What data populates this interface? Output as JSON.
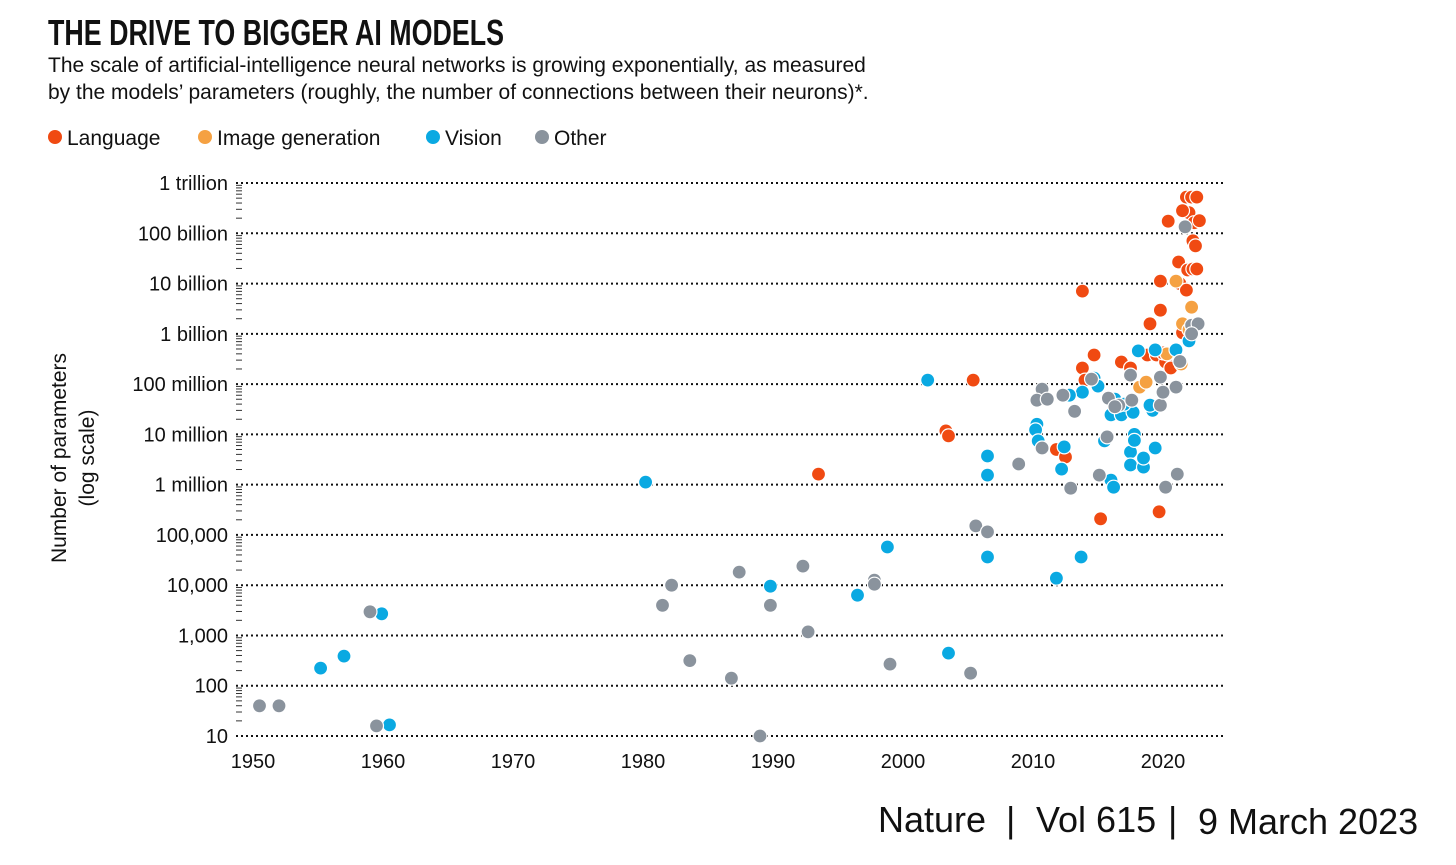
{
  "chart_data": {
    "type": "scatter",
    "title": "THE DRIVE TO BIGGER AI MODELS",
    "subtitle_lines": [
      "The scale of artificial-intelligence neural networks is growing exponentially, as measured",
      "by the models’ parameters (roughly, the number of connections between their neurons)*."
    ],
    "xlabel": "",
    "ylabel_lines": [
      "Number of parameters",
      "(log scale)"
    ],
    "y_scale": "log10",
    "xlim": [
      1948.5,
      2024.5
    ],
    "ylim_log10": [
      1,
      12
    ],
    "x_ticks": [
      1950,
      1960,
      1970,
      1980,
      1990,
      2000,
      2010,
      2020
    ],
    "x_tick_labels": [
      "1950",
      "1960",
      "1970",
      "1980",
      "1990",
      "2000",
      "2010",
      "2020"
    ],
    "y_ticks_log10": [
      1,
      2,
      3,
      4,
      5,
      6,
      7,
      8,
      9,
      10,
      11,
      12
    ],
    "y_tick_labels": [
      "10",
      "100",
      "1,000",
      "10,000",
      "100,000",
      "1 million",
      "10 million",
      "100 million",
      "1 billion",
      "10 billion",
      "100 billion",
      "1 trillion"
    ],
    "grid": "horizontal dotted",
    "legend_position": "top-left",
    "series": [
      {
        "name": "Language",
        "color": "#f04a12",
        "points_year_log10params": [
          [
            1993.5,
            6.21
          ],
          [
            2003.3,
            7.07
          ],
          [
            2003.5,
            6.97
          ],
          [
            2005.4,
            8.08
          ],
          [
            2011.8,
            6.7
          ],
          [
            2012.5,
            6.55
          ],
          [
            2013.8,
            9.85
          ],
          [
            2013.8,
            8.32
          ],
          [
            2014.7,
            8.58
          ],
          [
            2014,
            8.08
          ],
          [
            2015.2,
            5.32
          ],
          [
            2016.8,
            8.44
          ],
          [
            2017.5,
            8.32
          ],
          [
            2019,
            9.2
          ],
          [
            2019.8,
            10.05
          ],
          [
            2019.8,
            9.47
          ],
          [
            2019.7,
            5.46
          ],
          [
            2018.8,
            8.58
          ],
          [
            2019.5,
            8.58
          ],
          [
            2020.2,
            8.44
          ],
          [
            2020,
            8.62
          ],
          [
            2021.2,
            10.43
          ],
          [
            2021.3,
            10.0
          ],
          [
            2020.4,
            11.24
          ],
          [
            2021.8,
            11.72
          ],
          [
            2022.2,
            11.72
          ],
          [
            2022.6,
            11.72
          ],
          [
            2022,
            11.41
          ],
          [
            2022.4,
            11.21
          ],
          [
            2022.3,
            10.85
          ],
          [
            2022.5,
            10.75
          ],
          [
            2021.9,
            10.27
          ],
          [
            2022.3,
            10.29
          ],
          [
            2022.6,
            10.29
          ],
          [
            2021.5,
            11.45
          ],
          [
            2022.8,
            11.25
          ],
          [
            2021.5,
            9.02
          ],
          [
            2020.6,
            8.32
          ],
          [
            2021.8,
            9.87
          ]
        ]
      },
      {
        "name": "Image generation",
        "color": "#f5a142",
        "points_year_log10params": [
          [
            2018.2,
            7.94
          ],
          [
            2018.7,
            8.04
          ],
          [
            2021,
            10.05
          ],
          [
            2022.2,
            9.53
          ],
          [
            2021.4,
            8.4
          ],
          [
            2021.5,
            9.2
          ],
          [
            2022,
            9.08
          ],
          [
            2020.3,
            8.6
          ]
        ]
      },
      {
        "name": "Vision",
        "color": "#0aa9e2",
        "points_year_log10params": [
          [
            1955.2,
            2.35
          ],
          [
            1957,
            2.59
          ],
          [
            1959.9,
            3.43
          ],
          [
            1960.5,
            1.22
          ],
          [
            1980.2,
            6.05
          ],
          [
            1989.8,
            3.98
          ],
          [
            1996.5,
            3.8
          ],
          [
            1998.8,
            4.76
          ],
          [
            2001.9,
            8.08
          ],
          [
            2003.5,
            2.65
          ],
          [
            2006.5,
            6.57
          ],
          [
            2006.5,
            6.19
          ],
          [
            2006.5,
            4.56
          ],
          [
            2010.3,
            7.2
          ],
          [
            2010.2,
            7.09
          ],
          [
            2010.4,
            6.87
          ],
          [
            2011.8,
            4.14
          ],
          [
            2012.2,
            6.31
          ],
          [
            2012.4,
            6.75
          ],
          [
            2013.7,
            4.56
          ],
          [
            2013.8,
            7.84
          ],
          [
            2012.8,
            7.78
          ],
          [
            2014.7,
            8.12
          ],
          [
            2015,
            7.96
          ],
          [
            2015.5,
            6.87
          ],
          [
            2016,
            6.09
          ],
          [
            2016.2,
            5.95
          ],
          [
            2016,
            7.39
          ],
          [
            2016.8,
            7.39
          ],
          [
            2017.5,
            6.65
          ],
          [
            2017.5,
            6.39
          ],
          [
            2018.5,
            6.35
          ],
          [
            2018.5,
            6.53
          ],
          [
            2017.8,
            7.0
          ],
          [
            2017.8,
            6.88
          ],
          [
            2017.7,
            7.44
          ],
          [
            2018.1,
            8.66
          ],
          [
            2019.2,
            7.48
          ],
          [
            2019.4,
            6.73
          ],
          [
            2019.4,
            8.68
          ],
          [
            2021,
            8.68
          ],
          [
            2022,
            8.86
          ],
          [
            2019,
            7.58
          ],
          [
            2016.3,
            7.7
          ],
          [
            2017,
            7.6
          ]
        ]
      },
      {
        "name": "Other",
        "color": "#8a939d",
        "points_year_log10params": [
          [
            1950.5,
            1.6
          ],
          [
            1952,
            1.6
          ],
          [
            1959,
            3.47
          ],
          [
            1959.5,
            1.2
          ],
          [
            1981.5,
            3.6
          ],
          [
            1982.2,
            4.0
          ],
          [
            1983.6,
            2.5
          ],
          [
            1986.8,
            2.15
          ],
          [
            1987.4,
            4.26
          ],
          [
            1989.8,
            3.6
          ],
          [
            1989,
            1.0
          ],
          [
            1992.3,
            4.38
          ],
          [
            1992.7,
            3.07
          ],
          [
            1997.8,
            4.1
          ],
          [
            1997.8,
            4.02
          ],
          [
            1999,
            2.43
          ],
          [
            2005.2,
            2.25
          ],
          [
            2005.6,
            5.18
          ],
          [
            2006.5,
            5.06
          ],
          [
            2008.9,
            6.41
          ],
          [
            2010.7,
            7.9
          ],
          [
            2010.3,
            7.68
          ],
          [
            2010.7,
            6.73
          ],
          [
            2011.1,
            7.7
          ],
          [
            2013.2,
            7.46
          ],
          [
            2012.9,
            5.93
          ],
          [
            2015.1,
            6.19
          ],
          [
            2015.7,
            6.95
          ],
          [
            2014.5,
            8.1
          ],
          [
            2020.2,
            5.95
          ],
          [
            2021.1,
            6.21
          ],
          [
            2021,
            7.94
          ],
          [
            2019.8,
            7.58
          ],
          [
            2020,
            7.84
          ],
          [
            2021.7,
            11.13
          ],
          [
            2022.2,
            9.17
          ],
          [
            2022.7,
            9.2
          ],
          [
            2017.5,
            8.18
          ],
          [
            2016.6,
            7.58
          ],
          [
            2017.6,
            7.68
          ],
          [
            2015.8,
            7.72
          ],
          [
            2019.8,
            8.14
          ],
          [
            2012.3,
            7.78
          ],
          [
            2016.3,
            7.55
          ],
          [
            2021.3,
            8.45
          ],
          [
            2022.2,
            9.0
          ]
        ]
      }
    ]
  },
  "footer": {
    "journal": "Nature",
    "volume": "Vol 615",
    "date": "9 March 2023",
    "separator": "|"
  }
}
